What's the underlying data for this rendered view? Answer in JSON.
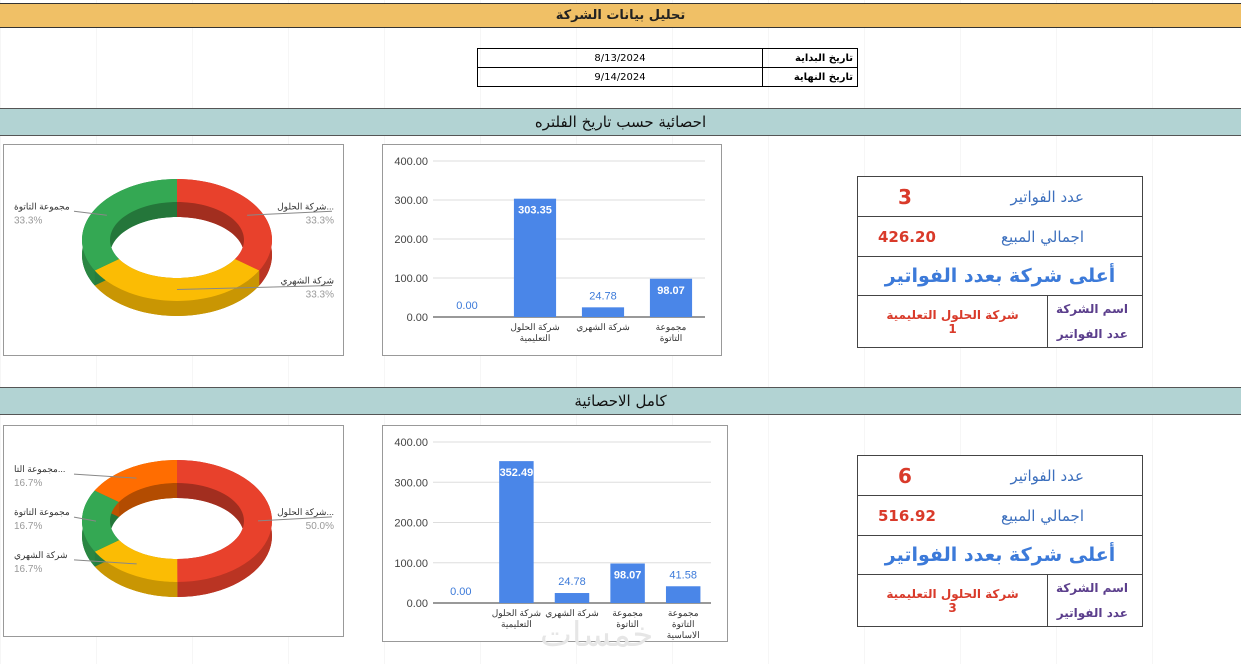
{
  "title": "تحليل بيانات الشركة",
  "dates": {
    "start_label": "تاريخ البداية",
    "start_value": "8/13/2024",
    "end_label": "تاريخ النهاية",
    "end_value": "9/14/2024"
  },
  "sections": [
    {
      "heading": "احصائية حسب تاريخ الفلتره",
      "stats": {
        "invoices_label": "عدد الفواتير",
        "invoices_value": "3",
        "sales_label": "اجمالي المبيع",
        "sales_value": "426.20",
        "top_label": "أعلى شركة بعدد الفواتير",
        "company_label": "اسم الشركة",
        "company_value": "شركة الحلول التعليمية",
        "count_label": "عدد الفواتير",
        "count_value": "1"
      }
    },
    {
      "heading": "كامل الاحصائية",
      "stats": {
        "invoices_label": "عدد الفواتير",
        "invoices_value": "6",
        "sales_label": "اجمالي المبيع",
        "sales_value": "516.92",
        "top_label": "أعلى شركة بعدد الفواتير",
        "company_label": "اسم الشركة",
        "company_value": "شركة الحلول التعليمية",
        "count_label": "عدد الفواتير",
        "count_value": "3"
      }
    }
  ],
  "watermark": "خمسات",
  "chart_data": [
    {
      "type": "pie",
      "slices": [
        {
          "label": "شركة الحلول...",
          "value": 33.3,
          "pct": "33.3%",
          "color": "#e8412c"
        },
        {
          "label": "شركة الشهري",
          "value": 33.3,
          "pct": "33.3%",
          "color": "#fbbc04"
        },
        {
          "label": "مجموعة التاتوة",
          "value": 33.3,
          "pct": "33.3%",
          "color": "#34a853"
        }
      ]
    },
    {
      "type": "bar",
      "categories": [
        "",
        "شركة الحلول التعليمية",
        "شركة الشهري",
        "مجموعة التاتوة"
      ],
      "values": [
        0.0,
        303.35,
        24.78,
        98.07
      ],
      "labels": [
        "0.00",
        "303.35",
        "24.78",
        "98.07"
      ],
      "yticks": [
        "400.00",
        "300.00",
        "200.00",
        "100.00",
        "0.00"
      ],
      "ylim": [
        0,
        400
      ],
      "color": "#4a86e8"
    },
    {
      "type": "pie",
      "slices": [
        {
          "label": "شركة الحلول...",
          "value": 50.0,
          "pct": "50.0%",
          "color": "#e8412c"
        },
        {
          "label": "شركة الشهري",
          "value": 16.7,
          "pct": "16.7%",
          "color": "#fbbc04"
        },
        {
          "label": "مجموعة التاتوة",
          "value": 16.7,
          "pct": "16.7%",
          "color": "#34a853"
        },
        {
          "label": "مجموعة التا...",
          "value": 16.7,
          "pct": "16.7%",
          "color": "#ff6d01"
        }
      ]
    },
    {
      "type": "bar",
      "categories": [
        "",
        "شركة الحلول التعليمية",
        "شركة الشهري",
        "مجموعة التاتوة",
        "مجموعة التاتوة الاساسية"
      ],
      "values": [
        0.0,
        352.49,
        24.78,
        98.07,
        41.58
      ],
      "labels": [
        "0.00",
        "352.49",
        "24.78",
        "98.07",
        "41.58"
      ],
      "yticks": [
        "400.00",
        "300.00",
        "200.00",
        "100.00",
        "0.00"
      ],
      "ylim": [
        0,
        400
      ],
      "color": "#4a86e8"
    }
  ]
}
